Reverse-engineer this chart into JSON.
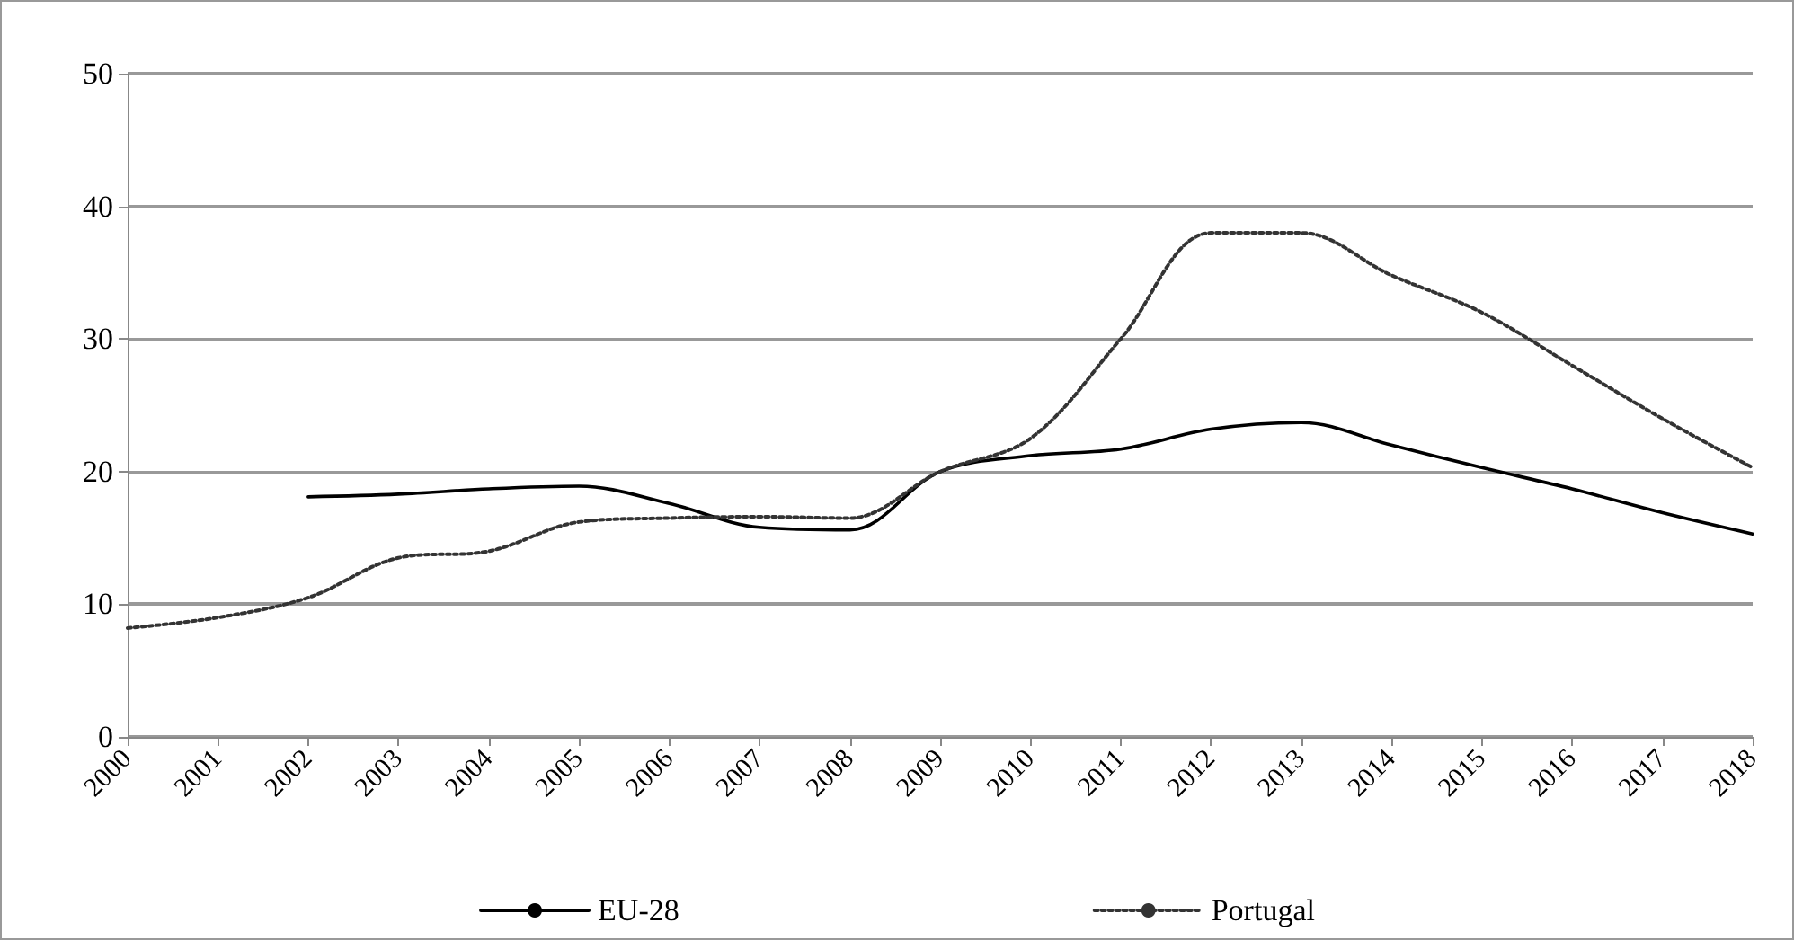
{
  "chart_data": {
    "type": "line",
    "categories": [
      "2000",
      "2001",
      "2002",
      "2003",
      "2004",
      "2005",
      "2006",
      "2007",
      "2008",
      "2009",
      "2010",
      "2011",
      "2012",
      "2013",
      "2014",
      "2015",
      "2016",
      "2017",
      "2018"
    ],
    "series": [
      {
        "name": "EU-28",
        "color": "#000000",
        "line_style": "solid",
        "values": [
          null,
          null,
          18.1,
          18.3,
          18.7,
          18.9,
          17.6,
          15.8,
          15.6,
          20.0,
          21.2,
          21.7,
          23.2,
          23.7,
          22.0,
          20.3,
          18.7,
          16.9,
          15.3
        ]
      },
      {
        "name": "Portugal",
        "color": "#333333",
        "line_style": "dotted",
        "values": [
          8.2,
          9.0,
          10.5,
          13.5,
          14.0,
          16.2,
          16.5,
          16.6,
          16.5,
          20.0,
          22.5,
          30.0,
          38.0,
          38.0,
          34.8,
          32.0,
          28.0,
          24.0,
          20.3
        ]
      }
    ],
    "ylim": [
      0,
      50
    ],
    "yticks": [
      0,
      10,
      20,
      30,
      40,
      50
    ],
    "grid": "y",
    "legend": "bottom",
    "marker": "none"
  }
}
